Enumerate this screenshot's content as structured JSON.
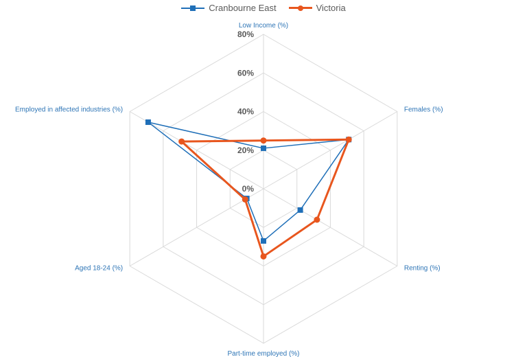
{
  "chart_data": {
    "type": "radar",
    "title": "",
    "axis_ticks": [
      "0%",
      "20%",
      "40%",
      "60%",
      "80%"
    ],
    "rlim": [
      0,
      80
    ],
    "categories": [
      "Low Income (%)",
      "Females (%)",
      "Renting (%)",
      "Part-time employed (%)",
      "Aged 18-24 (%)",
      "Employed in affected industries (%)"
    ],
    "series": [
      {
        "name": "Cranbourne East",
        "color": "#1f6fb8",
        "marker": "square",
        "values": [
          21,
          51,
          22,
          27,
          10,
          69
        ]
      },
      {
        "name": "Victoria",
        "color": "#e8561e",
        "marker": "circle",
        "values": [
          25,
          51,
          32,
          35,
          11,
          49
        ]
      }
    ],
    "grid": true,
    "legend_position": "top-center"
  }
}
